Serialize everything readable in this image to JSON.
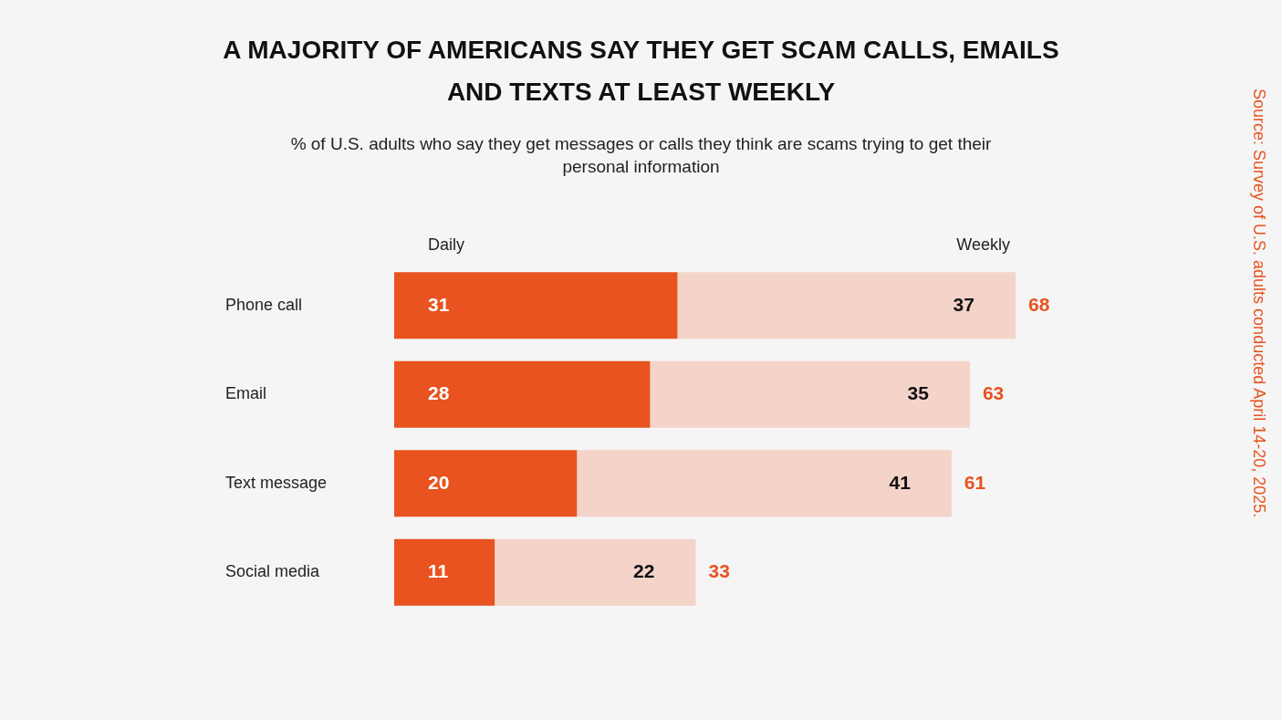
{
  "chart_data": {
    "type": "bar",
    "orientation": "horizontal",
    "stacked": true,
    "title": "A MAJORITY OF AMERICANS SAY THEY GET SCAM CALLS, EMAILS AND TEXTS AT LEAST WEEKLY",
    "subtitle": "% of U.S. adults who say they get messages or calls they think are scams trying to get their personal information",
    "categories": [
      "Phone call",
      "Email",
      "Text message",
      "Social media"
    ],
    "series": [
      {
        "name": "Daily",
        "color": "#e8531f",
        "values": [
          31,
          28,
          20,
          11
        ]
      },
      {
        "name": "Weekly",
        "color": "#f4d3c8",
        "values": [
          37,
          35,
          41,
          22
        ]
      }
    ],
    "totals": [
      "68",
      "63",
      "61",
      "33"
    ],
    "data_labels": true,
    "tick_labels": "y",
    "annotations": [
      "Source: Survey of U.S. adults conducted April 14-20, 2025."
    ]
  }
}
